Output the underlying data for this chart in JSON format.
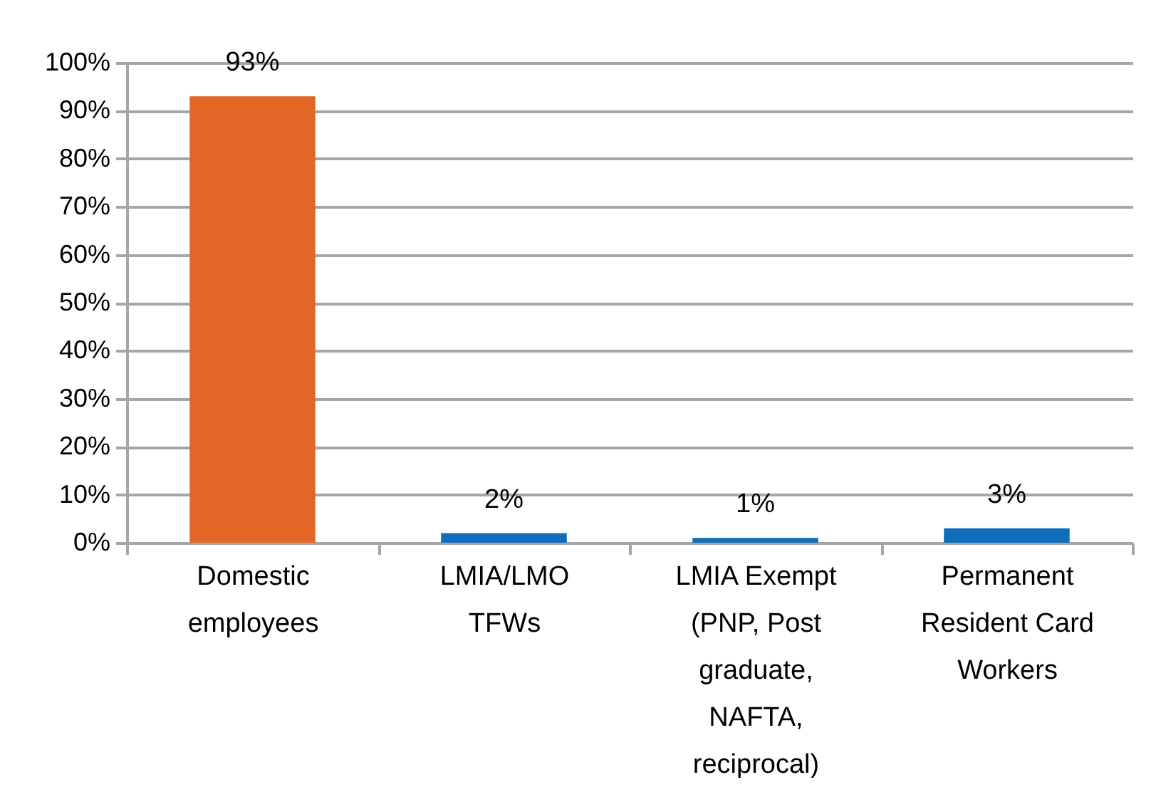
{
  "chart_data": {
    "type": "bar",
    "categories": [
      "Domestic employees",
      "LMIA/LMO TFWs",
      "LMIA Exempt (PNP, Post graduate, NAFTA, reciprocal)",
      "Permanent Resident Card Workers"
    ],
    "values": [
      93,
      2,
      1,
      3
    ],
    "colors": [
      "#e26626",
      "#0f6dbb",
      "#0f6dbb",
      "#0f6dbb"
    ],
    "value_labels": [
      "93%",
      "2%",
      "1%",
      "3%"
    ],
    "ylim": [
      0,
      100
    ],
    "yticks": [
      {
        "value": 0,
        "label": "0%"
      },
      {
        "value": 10,
        "label": "10%"
      },
      {
        "value": 20,
        "label": "20%"
      },
      {
        "value": 30,
        "label": "30%"
      },
      {
        "value": 40,
        "label": "40%"
      },
      {
        "value": 50,
        "label": "50%"
      },
      {
        "value": 60,
        "label": "60%"
      },
      {
        "value": 70,
        "label": "70%"
      },
      {
        "value": 80,
        "label": "80%"
      },
      {
        "value": 90,
        "label": "90%"
      },
      {
        "value": 100,
        "label": "100%"
      }
    ],
    "grid": "y"
  }
}
